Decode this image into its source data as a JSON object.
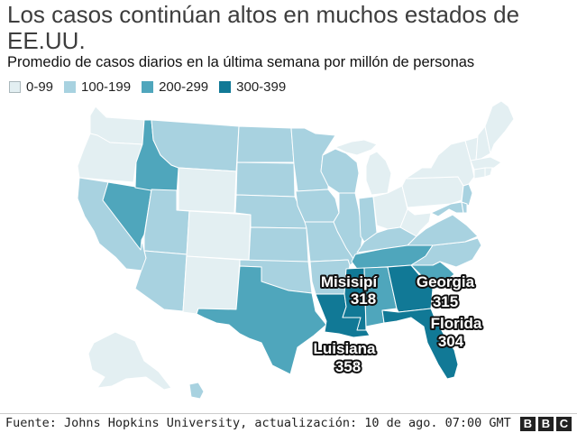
{
  "title": "Los casos continúan altos en muchos estados de EE.UU.",
  "subtitle": "Promedio de casos diarios en la última semana por millón de personas",
  "legend": [
    {
      "label": "0-99",
      "color": "#e3eff2"
    },
    {
      "label": "100-199",
      "color": "#a8d2e0"
    },
    {
      "label": "200-299",
      "color": "#4fa6bc"
    },
    {
      "label": "300-399",
      "color": "#117996"
    }
  ],
  "annotations": {
    "ms": {
      "name": "Misisipí",
      "value": "318"
    },
    "ga": {
      "name": "Georgia",
      "value": "315"
    },
    "fl": {
      "name": "Florida",
      "value": "304"
    },
    "la": {
      "name": "Luisiana",
      "value": "358"
    }
  },
  "footer": {
    "source": "Fuente: Johns Hopkins University, actualización: 10 de ago. 07:00 GMT",
    "logo": [
      "B",
      "B",
      "C"
    ]
  },
  "colors": {
    "border": "#ffffff",
    "label_text": "#ffffff",
    "label_outline": "#111111"
  }
}
